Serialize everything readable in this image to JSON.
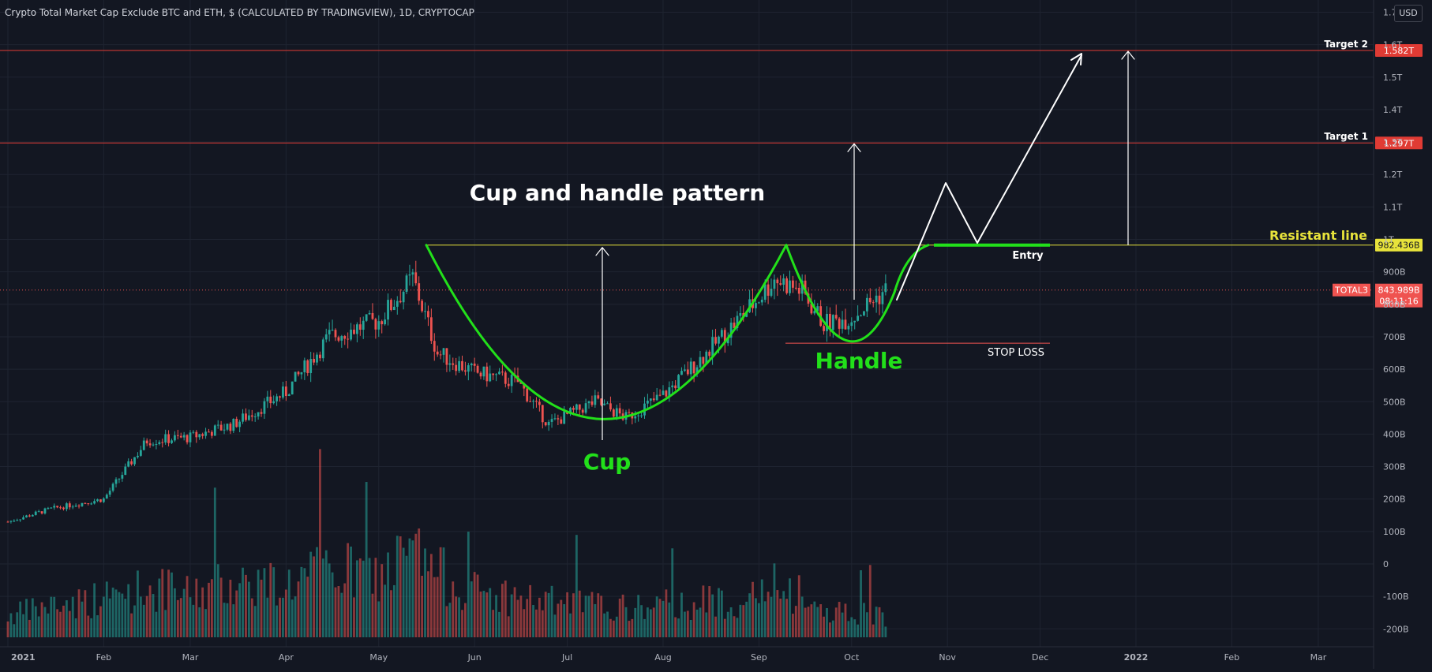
{
  "header": {
    "title": "Crypto Total Market Cap Exclude BTC and ETH, $ (CALCULATED BY TRADINGVIEW), 1D, CRYPTOCAP",
    "currency": "USD"
  },
  "colors": {
    "background": "#131722",
    "grid": "#1f2431",
    "up": "#26a69a",
    "down": "#ef5350",
    "pattern": "#22e01a",
    "resistance": "#e8e33b",
    "target_line": "#e03b34",
    "annotation": "#ffffff",
    "axis_text": "#b2b5be"
  },
  "chart_data": {
    "type": "candlestick",
    "title": "Crypto Total Market Cap Exclude BTC and ETH, $ (CALCULATED BY TRADINGVIEW), 1D, CRYPTOCAP",
    "symbol": "TOTAL3",
    "currency": "USD",
    "ylim": [
      -250,
      1700
    ],
    "y_unit": "B",
    "y_ticks": [
      "-200B",
      "-100B",
      "0",
      "100B",
      "200B",
      "300B",
      "400B",
      "500B",
      "600B",
      "700B",
      "800B",
      "900B",
      "1T",
      "1.1T",
      "1.2T",
      "1.3T",
      "1.4T",
      "1.5T",
      "1.6T",
      "1.7T"
    ],
    "x_ticks": [
      "2021",
      "Feb",
      "Mar",
      "Apr",
      "May",
      "Jun",
      "Jul",
      "Aug",
      "Sep",
      "Oct",
      "Nov",
      "Dec",
      "2022",
      "Feb",
      "Mar"
    ],
    "x_range": [
      "2021-01-01",
      "2022-03-20"
    ],
    "grid": true,
    "price_series_approx": {
      "dates": [
        "2021-01-01",
        "2021-01-15",
        "2021-02-01",
        "2021-02-15",
        "2021-03-01",
        "2021-03-15",
        "2021-04-01",
        "2021-04-15",
        "2021-05-01",
        "2021-05-12",
        "2021-05-20",
        "2021-06-01",
        "2021-06-15",
        "2021-06-25",
        "2021-07-10",
        "2021-07-20",
        "2021-08-01",
        "2021-08-15",
        "2021-09-01",
        "2021-09-06",
        "2021-09-15",
        "2021-09-22",
        "2021-10-01",
        "2021-10-12"
      ],
      "close": [
        130,
        170,
        200,
        380,
        390,
        430,
        530,
        700,
        750,
        880,
        650,
        590,
        560,
        430,
        500,
        450,
        520,
        650,
        820,
        880,
        840,
        740,
        760,
        844
      ]
    },
    "volume_approx": [
      30,
      45,
      55,
      70,
      60,
      80,
      75,
      95,
      85,
      120,
      90,
      65,
      55,
      50,
      45,
      40,
      45,
      50,
      55,
      70,
      45,
      40,
      35,
      30
    ],
    "levels": [
      {
        "name": "Target 2",
        "value": 1582,
        "label": "1.582T"
      },
      {
        "name": "Target 1",
        "value": 1297,
        "label": "1.297T"
      },
      {
        "name": "Resistant line",
        "value": 982.436,
        "label": "982.436B"
      },
      {
        "name": "STOP LOSS",
        "value": 680
      }
    ],
    "current_price": {
      "symbol": "TOTAL3",
      "value": 843.989,
      "label": "843.989B",
      "countdown": "08:11:16"
    },
    "annotations": {
      "headline": "Cup and handle pattern",
      "cup": "Cup",
      "handle": "Handle",
      "entry": "Entry",
      "stop_loss": "STOP LOSS",
      "resistance": "Resistant line",
      "target1": "Target 1",
      "target2": "Target 2"
    }
  }
}
